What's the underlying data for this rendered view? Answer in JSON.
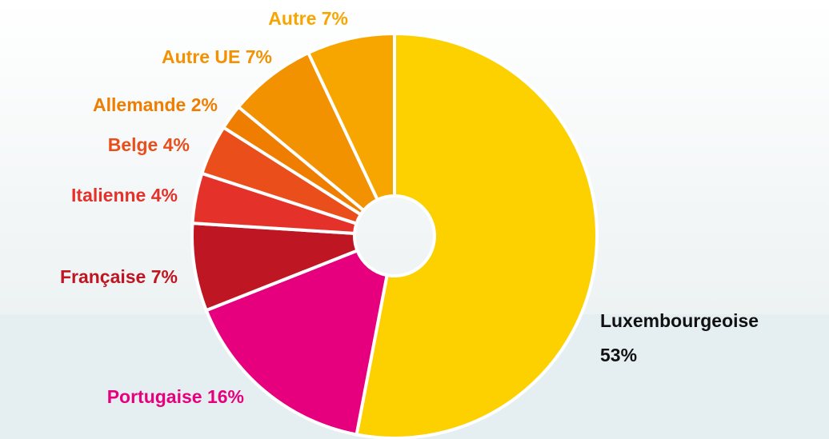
{
  "chart_data": {
    "type": "pie",
    "categories": [
      "Luxembourgeoise",
      "Portugaise",
      "Française",
      "Italienne",
      "Belge",
      "Allemande",
      "Autre UE",
      "Autre"
    ],
    "values": [
      53,
      16,
      7,
      4,
      4,
      2,
      7,
      7
    ],
    "value_labels": [
      "53%",
      "16%",
      "7%",
      "4%",
      "4%",
      "2%",
      "7%",
      "7%"
    ],
    "colors": [
      "#fdd000",
      "#e6007e",
      "#be1622",
      "#e4322b",
      "#e94e1b",
      "#ef7d00",
      "#f39200",
      "#f7a600"
    ]
  }
}
